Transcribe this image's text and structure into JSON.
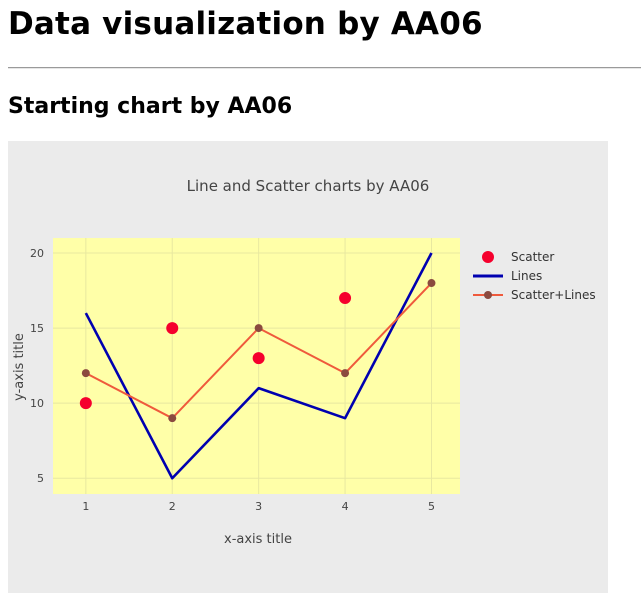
{
  "page": {
    "heading": "Data visualization by AA06",
    "subheading": "Starting chart by AA06"
  },
  "chart_data": {
    "type": "line",
    "title": "Line and Scatter charts by AA06",
    "xlabel": "x-axis title",
    "ylabel": "y-axis title",
    "xlim": [
      0.62,
      5.33
    ],
    "ylim": [
      3.95,
      21.0
    ],
    "x_ticks": [
      1,
      2,
      3,
      4,
      5
    ],
    "y_ticks": [
      5,
      10,
      15,
      20
    ],
    "grid": true,
    "plot_bgcolor": "#ffffa8",
    "paper_bgcolor": "#ebebeb",
    "legend_position": "top-right",
    "series": [
      {
        "name": "Scatter",
        "mode": "markers",
        "color": "#f5002d",
        "x": [
          1,
          2,
          3,
          4
        ],
        "y": [
          10,
          15,
          13,
          17
        ]
      },
      {
        "name": "Lines",
        "mode": "lines",
        "color": "#0000b0",
        "x": [
          1,
          2,
          3,
          4,
          5
        ],
        "y": [
          16,
          5,
          11,
          9,
          20
        ]
      },
      {
        "name": "Scatter+Lines",
        "mode": "lines+markers",
        "color": "#ef5a3c",
        "marker_color": "#8b4a3f",
        "x": [
          1,
          2,
          3,
          4,
          5
        ],
        "y": [
          12,
          9,
          15,
          12,
          18
        ]
      }
    ]
  }
}
